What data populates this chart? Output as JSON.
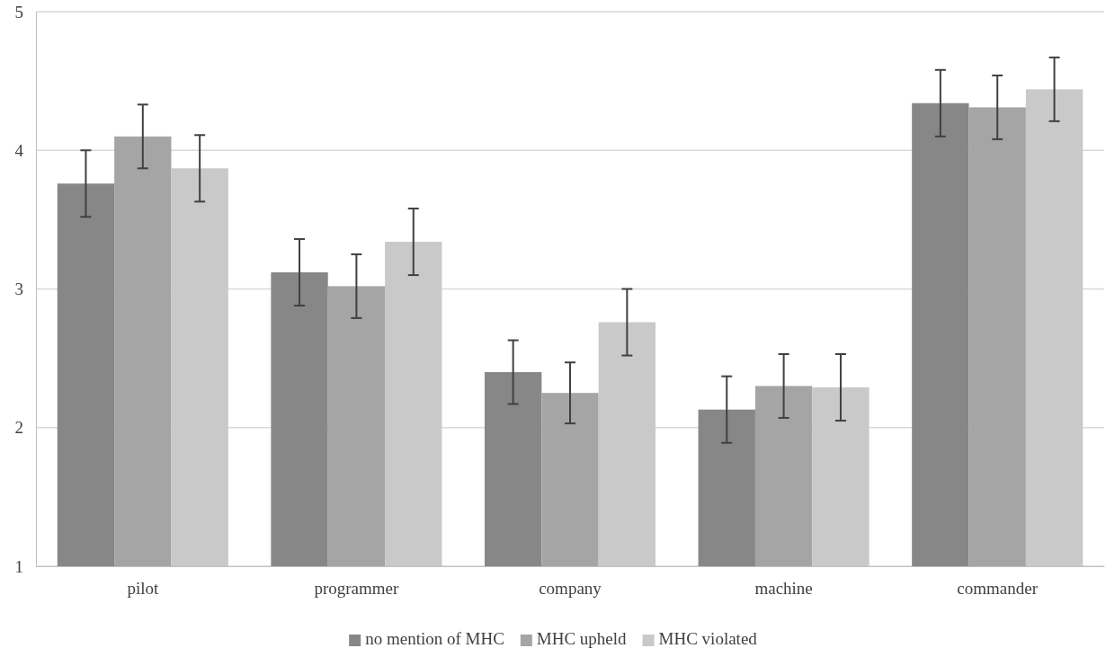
{
  "chart_data": {
    "type": "bar",
    "categories": [
      "pilot",
      "programmer",
      "company",
      "machine",
      "commander"
    ],
    "series": [
      {
        "name": "no mention of MHC",
        "color": "#878787",
        "values": [
          3.76,
          3.12,
          2.4,
          2.13,
          4.34
        ],
        "errors": [
          0.24,
          0.24,
          0.23,
          0.24,
          0.24
        ]
      },
      {
        "name": "MHC upheld",
        "color": "#a5a5a5",
        "values": [
          4.1,
          3.02,
          2.25,
          2.3,
          4.31
        ],
        "errors": [
          0.23,
          0.23,
          0.22,
          0.23,
          0.23
        ]
      },
      {
        "name": "MHC violated",
        "color": "#c9c9c9",
        "values": [
          3.87,
          3.34,
          2.76,
          2.29,
          4.44
        ],
        "errors": [
          0.24,
          0.24,
          0.24,
          0.24,
          0.23
        ]
      }
    ],
    "ylim": [
      1,
      5
    ],
    "yticks": [
      1,
      2,
      3,
      4,
      5
    ],
    "grid": "y",
    "legend": "bottom"
  }
}
